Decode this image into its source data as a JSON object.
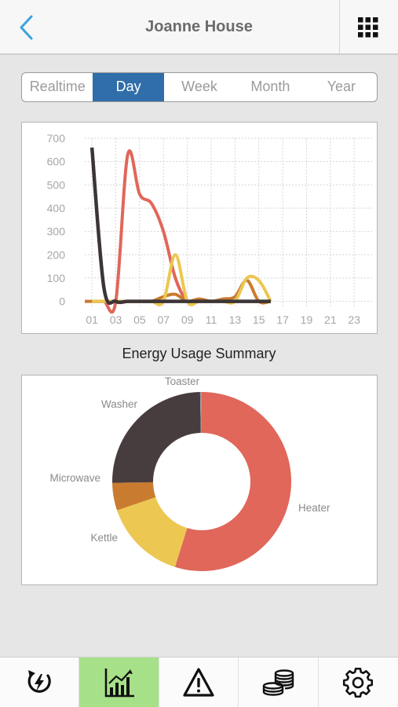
{
  "header": {
    "title": "Joanne House",
    "back_icon": "chevron-left-icon",
    "menu_icon": "grid-icon"
  },
  "tabs": [
    {
      "label": "Realtime",
      "active": false
    },
    {
      "label": "Day",
      "active": true
    },
    {
      "label": "Week",
      "active": false
    },
    {
      "label": "Month",
      "active": false
    },
    {
      "label": "Year",
      "active": false
    }
  ],
  "summary_title": "Energy Usage Summary",
  "chart_data": [
    {
      "type": "line",
      "x": [
        0,
        1,
        2,
        3,
        4,
        5,
        6,
        7,
        8,
        9,
        10,
        11,
        12,
        13,
        14,
        15
      ],
      "xticks": [
        "01",
        "03",
        "05",
        "07",
        "09",
        "11",
        "13",
        "15",
        "17",
        "19",
        "21",
        "23"
      ],
      "yticks": [
        "0",
        "100",
        "200",
        "300",
        "400",
        "500",
        "600",
        "700"
      ],
      "ylim": [
        -25,
        700
      ],
      "xlim": [
        -0.6,
        23.5
      ],
      "series": [
        {
          "color": "#3c3536",
          "values": [
            660,
            60,
            0,
            0,
            0,
            0,
            0,
            0,
            0,
            0,
            0,
            0,
            0,
            0,
            0,
            0
          ]
        },
        {
          "color": "#e0675a",
          "values": [
            0,
            0,
            0,
            630,
            460,
            420,
            300,
            100,
            0,
            0,
            0,
            0,
            0,
            0,
            0,
            0
          ]
        },
        {
          "color": "#ecc752",
          "values": [
            0,
            0,
            0,
            0,
            0,
            0,
            0,
            200,
            0,
            0,
            0,
            0,
            0,
            100,
            90,
            0
          ]
        },
        {
          "color": "#c97b2f",
          "values": [
            0,
            0,
            0,
            0,
            0,
            0,
            20,
            30,
            0,
            10,
            0,
            10,
            20,
            90,
            0,
            0
          ]
        }
      ]
    },
    {
      "type": "pie",
      "donut": true,
      "slices": [
        {
          "label": "Heater",
          "value": 55,
          "color": "#e0675a"
        },
        {
          "label": "Kettle",
          "value": 15,
          "color": "#ecc752"
        },
        {
          "label": "Microwave",
          "value": 5,
          "color": "#c97b2f"
        },
        {
          "label": "Washer",
          "value": 25,
          "color": "#473c3e"
        },
        {
          "label": "Toaster",
          "value": 0.3,
          "color": "#9a9a9a"
        }
      ]
    }
  ],
  "bottom_tabs": [
    {
      "name": "power-icon",
      "active": false
    },
    {
      "name": "chart-icon",
      "active": true
    },
    {
      "name": "warning-icon",
      "active": false
    },
    {
      "name": "coins-icon",
      "active": false
    },
    {
      "name": "gear-icon",
      "active": false
    }
  ],
  "colors": {
    "accent": "#2f6ea8",
    "tab_active": "#a6e088"
  }
}
